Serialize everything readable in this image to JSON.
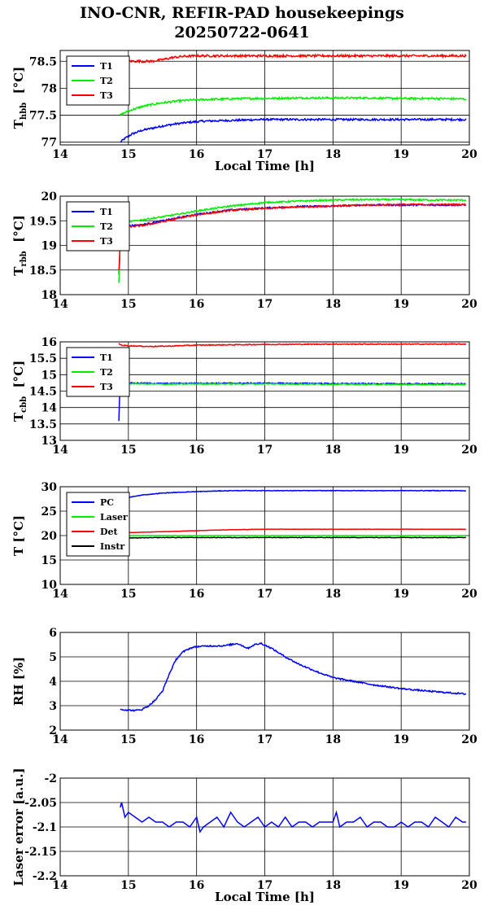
{
  "title": "INO-CNR, REFIR-PAD housekeepings",
  "subtitle": "20250722-0641",
  "chart_data": [
    {
      "type": "line",
      "ylabel_main": "T",
      "ylabel_sub": "hbb",
      "ylabel_unit": "[°C]",
      "xlabel": "Local Time [h]",
      "xlim": [
        14,
        20
      ],
      "ylim": [
        76.95,
        78.7
      ],
      "xticks": [
        "14",
        "15",
        "16",
        "17",
        "18",
        "19",
        "20"
      ],
      "yticks": [
        {
          "v": 77,
          "label": "77"
        },
        {
          "v": 77.5,
          "label": "77.5"
        },
        {
          "v": 78,
          "label": "78"
        },
        {
          "v": 78.5,
          "label": "78.5"
        }
      ],
      "grid": true,
      "legend": "top-left",
      "series": [
        {
          "name": "T1",
          "color": "#0000ff",
          "x": [
            14.88,
            14.95,
            15.05,
            15.2,
            15.35,
            15.5,
            15.7,
            15.9,
            16.1,
            16.4,
            16.7,
            17.0,
            17.5,
            18.0,
            18.5,
            19.0,
            19.5,
            19.95
          ],
          "y": [
            77.0,
            77.07,
            77.15,
            77.22,
            77.26,
            77.3,
            77.34,
            77.37,
            77.39,
            77.4,
            77.41,
            77.42,
            77.42,
            77.42,
            77.42,
            77.42,
            77.42,
            77.42
          ],
          "noise": 0.018
        },
        {
          "name": "T2",
          "color": "#00ee00",
          "x": [
            14.88,
            14.95,
            15.05,
            15.2,
            15.35,
            15.5,
            15.7,
            15.9,
            16.1,
            16.4,
            16.7,
            17.0,
            17.5,
            18.0,
            18.5,
            19.0,
            19.5,
            19.95
          ],
          "y": [
            77.5,
            77.55,
            77.6,
            77.66,
            77.7,
            77.73,
            77.76,
            77.78,
            77.79,
            77.8,
            77.81,
            77.81,
            77.82,
            77.82,
            77.82,
            77.81,
            77.81,
            77.8
          ],
          "noise": 0.018
        },
        {
          "name": "T3",
          "color": "#ff0000",
          "x": [
            14.86,
            14.88,
            14.9,
            14.95,
            15.05,
            15.2,
            15.35,
            15.5,
            15.65,
            15.8,
            16.0,
            16.5,
            17.0,
            17.5,
            18.0,
            18.5,
            19.0,
            19.5,
            19.95
          ],
          "y": [
            78.28,
            78.55,
            78.5,
            78.52,
            78.5,
            78.5,
            78.5,
            78.53,
            78.57,
            78.59,
            78.6,
            78.6,
            78.6,
            78.6,
            78.6,
            78.6,
            78.6,
            78.6,
            78.6
          ],
          "noise": 0.02
        }
      ]
    },
    {
      "type": "line",
      "ylabel_main": "T",
      "ylabel_sub": "rbb",
      "ylabel_unit": "[°C]",
      "xlabel": "",
      "xlim": [
        14,
        20
      ],
      "ylim": [
        18,
        20
      ],
      "xticks": [
        "14",
        "15",
        "16",
        "17",
        "18",
        "19",
        "20"
      ],
      "yticks": [
        {
          "v": 18,
          "label": "18"
        },
        {
          "v": 18.5,
          "label": "18.5"
        },
        {
          "v": 19,
          "label": "19"
        },
        {
          "v": 19.5,
          "label": "19.5"
        },
        {
          "v": 20,
          "label": "20"
        }
      ],
      "grid": true,
      "legend": "top-left",
      "series": [
        {
          "name": "T1",
          "color": "#0000ff",
          "x": [
            14.86,
            14.87,
            14.88,
            14.9,
            15.0,
            15.2,
            15.5,
            15.8,
            16.0,
            16.5,
            17.0,
            17.5,
            18.0,
            18.5,
            19.0,
            19.5,
            19.95
          ],
          "y": [
            18.4,
            18.6,
            19.2,
            19.38,
            19.4,
            19.42,
            19.5,
            19.58,
            19.63,
            19.72,
            19.76,
            19.79,
            19.8,
            19.82,
            19.82,
            19.82,
            19.82
          ],
          "noise": 0.015
        },
        {
          "name": "T2",
          "color": "#00ee00",
          "x": [
            14.86,
            14.87,
            14.88,
            14.9,
            15.0,
            15.2,
            15.5,
            15.8,
            16.0,
            16.5,
            17.0,
            17.5,
            18.0,
            18.5,
            19.0,
            19.5,
            19.95
          ],
          "y": [
            18.25,
            18.6,
            19.3,
            19.45,
            19.48,
            19.52,
            19.58,
            19.65,
            19.7,
            19.8,
            19.87,
            19.9,
            19.92,
            19.93,
            19.93,
            19.92,
            19.92
          ],
          "noise": 0.015
        },
        {
          "name": "T3",
          "color": "#ff0000",
          "x": [
            14.86,
            14.87,
            14.88,
            14.9,
            15.0,
            15.2,
            15.5,
            15.8,
            16.0,
            16.5,
            17.0,
            17.5,
            18.0,
            18.5,
            19.0,
            19.5,
            19.95
          ],
          "y": [
            18.5,
            18.7,
            19.2,
            19.35,
            19.38,
            19.4,
            19.48,
            19.57,
            19.62,
            19.71,
            19.75,
            19.78,
            19.8,
            19.82,
            19.83,
            19.83,
            19.83
          ],
          "noise": 0.015
        }
      ]
    },
    {
      "type": "line",
      "ylabel_main": "T",
      "ylabel_sub": "cbb",
      "ylabel_unit": "[°C]",
      "xlabel": "",
      "xlim": [
        14,
        20
      ],
      "ylim": [
        13,
        16
      ],
      "xticks": [
        "14",
        "15",
        "16",
        "17",
        "18",
        "19",
        "20"
      ],
      "yticks": [
        {
          "v": 13,
          "label": "13"
        },
        {
          "v": 13.5,
          "label": "13.5"
        },
        {
          "v": 14,
          "label": "14"
        },
        {
          "v": 14.5,
          "label": "14.5"
        },
        {
          "v": 15,
          "label": "15"
        },
        {
          "v": 15.5,
          "label": "15.5"
        },
        {
          "v": 16,
          "label": "16"
        }
      ],
      "grid": true,
      "legend": "top-left",
      "series": [
        {
          "name": "T1",
          "color": "#0000ff",
          "x": [
            14.86,
            14.87,
            14.88,
            14.9,
            15.0,
            15.5,
            16.0,
            17.0,
            18.0,
            19.0,
            19.95
          ],
          "y": [
            13.6,
            14.2,
            14.7,
            14.8,
            14.75,
            14.73,
            14.74,
            14.74,
            14.73,
            14.72,
            14.72
          ],
          "noise": 0.018
        },
        {
          "name": "T2",
          "color": "#00ee00",
          "x": [
            14.86,
            14.87,
            14.88,
            14.9,
            15.0,
            15.5,
            16.0,
            17.0,
            18.0,
            19.0,
            19.95
          ],
          "y": [
            14.5,
            14.6,
            14.7,
            14.75,
            14.73,
            14.71,
            14.72,
            14.72,
            14.71,
            14.7,
            14.7
          ],
          "noise": 0.018
        },
        {
          "name": "T3",
          "color": "#ff0000",
          "x": [
            14.86,
            14.88,
            14.9,
            15.0,
            15.3,
            15.6,
            16.0,
            17.0,
            18.0,
            19.0,
            19.95
          ],
          "y": [
            15.95,
            15.92,
            15.9,
            15.88,
            15.86,
            15.87,
            15.9,
            15.92,
            15.93,
            15.93,
            15.93
          ],
          "noise": 0.014
        }
      ]
    },
    {
      "type": "line",
      "ylabel_main": "T [°C]",
      "ylabel_sub": "",
      "ylabel_unit": "",
      "xlabel": "",
      "xlim": [
        14,
        20
      ],
      "ylim": [
        10,
        30
      ],
      "xticks": [
        "14",
        "15",
        "16",
        "17",
        "18",
        "19",
        "20"
      ],
      "yticks": [
        {
          "v": 10,
          "label": "10"
        },
        {
          "v": 15,
          "label": "15"
        },
        {
          "v": 20,
          "label": "20"
        },
        {
          "v": 25,
          "label": "25"
        },
        {
          "v": 30,
          "label": "30"
        }
      ],
      "grid": true,
      "legend": "top-left",
      "series": [
        {
          "name": "PC",
          "color": "#0000ff",
          "x": [
            14.88,
            15.0,
            15.2,
            15.5,
            15.8,
            16.0,
            16.5,
            17.0,
            17.5,
            18.0,
            18.5,
            19.0,
            19.5,
            19.95
          ],
          "y": [
            26.5,
            27.8,
            28.3,
            28.7,
            28.9,
            29.0,
            29.2,
            29.2,
            29.2,
            29.2,
            29.2,
            29.2,
            29.2,
            29.2
          ],
          "noise": 0.06
        },
        {
          "name": "Laser",
          "color": "#00ee00",
          "x": [
            14.88,
            15.0,
            15.5,
            16.0,
            17.0,
            18.0,
            19.0,
            19.95
          ],
          "y": [
            20.0,
            20.0,
            20.0,
            20.0,
            20.0,
            20.0,
            20.0,
            20.0
          ],
          "noise": 0.02
        },
        {
          "name": "Det",
          "color": "#ff0000",
          "x": [
            14.88,
            15.0,
            15.5,
            16.0,
            16.5,
            17.0,
            18.0,
            19.0,
            19.95
          ],
          "y": [
            20.5,
            20.6,
            20.8,
            21.0,
            21.2,
            21.3,
            21.3,
            21.3,
            21.3
          ],
          "noise": 0.03
        },
        {
          "name": "Instr",
          "color": "#000000",
          "x": [
            14.88,
            15.0,
            15.5,
            16.0,
            17.0,
            18.0,
            19.0,
            19.95
          ],
          "y": [
            19.5,
            19.5,
            19.6,
            19.6,
            19.6,
            19.6,
            19.6,
            19.6
          ],
          "noise": 0.05
        }
      ]
    },
    {
      "type": "line",
      "ylabel_main": "RH [%]",
      "ylabel_sub": "",
      "ylabel_unit": "",
      "xlabel": "",
      "xlim": [
        14,
        20
      ],
      "ylim": [
        2,
        6
      ],
      "xticks": [
        "14",
        "15",
        "16",
        "17",
        "18",
        "19",
        "20"
      ],
      "yticks": [
        {
          "v": 2,
          "label": "2"
        },
        {
          "v": 3,
          "label": "3"
        },
        {
          "v": 4,
          "label": "4"
        },
        {
          "v": 5,
          "label": "5"
        },
        {
          "v": 6,
          "label": "6"
        }
      ],
      "grid": true,
      "legend": "none",
      "series": [
        {
          "name": "",
          "color": "#0000ff",
          "x": [
            14.88,
            15.0,
            15.1,
            15.2,
            15.3,
            15.4,
            15.5,
            15.6,
            15.7,
            15.8,
            15.9,
            16.0,
            16.2,
            16.4,
            16.6,
            16.75,
            16.85,
            16.95,
            17.1,
            17.3,
            17.5,
            17.8,
            18.0,
            18.3,
            18.6,
            19.0,
            19.3,
            19.6,
            19.95
          ],
          "y": [
            2.85,
            2.82,
            2.8,
            2.85,
            3.0,
            3.25,
            3.6,
            4.3,
            4.9,
            5.2,
            5.35,
            5.42,
            5.45,
            5.45,
            5.55,
            5.35,
            5.5,
            5.55,
            5.35,
            5.0,
            4.7,
            4.35,
            4.15,
            4.0,
            3.85,
            3.7,
            3.62,
            3.55,
            3.48
          ],
          "noise": 0.03
        }
      ]
    },
    {
      "type": "line",
      "ylabel_main": "Laser error [a.u.]",
      "ylabel_sub": "",
      "ylabel_unit": "",
      "xlabel": "Local Time [h]",
      "xlim": [
        14,
        20
      ],
      "ylim": [
        -2.2,
        -2
      ],
      "xticks": [
        "14",
        "15",
        "16",
        "17",
        "18",
        "19",
        "20"
      ],
      "yticks": [
        {
          "v": -2.2,
          "label": "-2.2"
        },
        {
          "v": -2.15,
          "label": "-2.15"
        },
        {
          "v": -2.1,
          "label": "-2.1"
        },
        {
          "v": -2.05,
          "label": "-2.05"
        },
        {
          "v": -2,
          "label": "-2"
        }
      ],
      "grid": true,
      "legend": "none",
      "series": [
        {
          "name": "",
          "color": "#0000ff",
          "x": [
            14.88,
            14.9,
            14.95,
            15.0,
            15.1,
            15.2,
            15.3,
            15.4,
            15.5,
            15.6,
            15.7,
            15.8,
            15.9,
            16.0,
            16.05,
            16.1,
            16.2,
            16.3,
            16.4,
            16.5,
            16.6,
            16.7,
            16.8,
            16.9,
            17.0,
            17.1,
            17.2,
            17.3,
            17.4,
            17.5,
            17.6,
            17.7,
            17.8,
            17.9,
            18.0,
            18.05,
            18.1,
            18.2,
            18.3,
            18.4,
            18.5,
            18.6,
            18.7,
            18.8,
            18.9,
            19.0,
            19.1,
            19.2,
            19.3,
            19.4,
            19.5,
            19.6,
            19.7,
            19.8,
            19.9,
            19.95
          ],
          "y": [
            -2.06,
            -2.05,
            -2.08,
            -2.07,
            -2.08,
            -2.09,
            -2.08,
            -2.09,
            -2.09,
            -2.1,
            -2.09,
            -2.09,
            -2.1,
            -2.08,
            -2.11,
            -2.1,
            -2.09,
            -2.08,
            -2.1,
            -2.07,
            -2.09,
            -2.1,
            -2.09,
            -2.08,
            -2.1,
            -2.09,
            -2.1,
            -2.08,
            -2.1,
            -2.09,
            -2.09,
            -2.1,
            -2.09,
            -2.09,
            -2.09,
            -2.07,
            -2.1,
            -2.09,
            -2.09,
            -2.08,
            -2.1,
            -2.09,
            -2.09,
            -2.1,
            -2.1,
            -2.09,
            -2.1,
            -2.09,
            -2.09,
            -2.1,
            -2.08,
            -2.09,
            -2.1,
            -2.08,
            -2.09,
            -2.09
          ],
          "noise": 0.0
        }
      ]
    }
  ]
}
